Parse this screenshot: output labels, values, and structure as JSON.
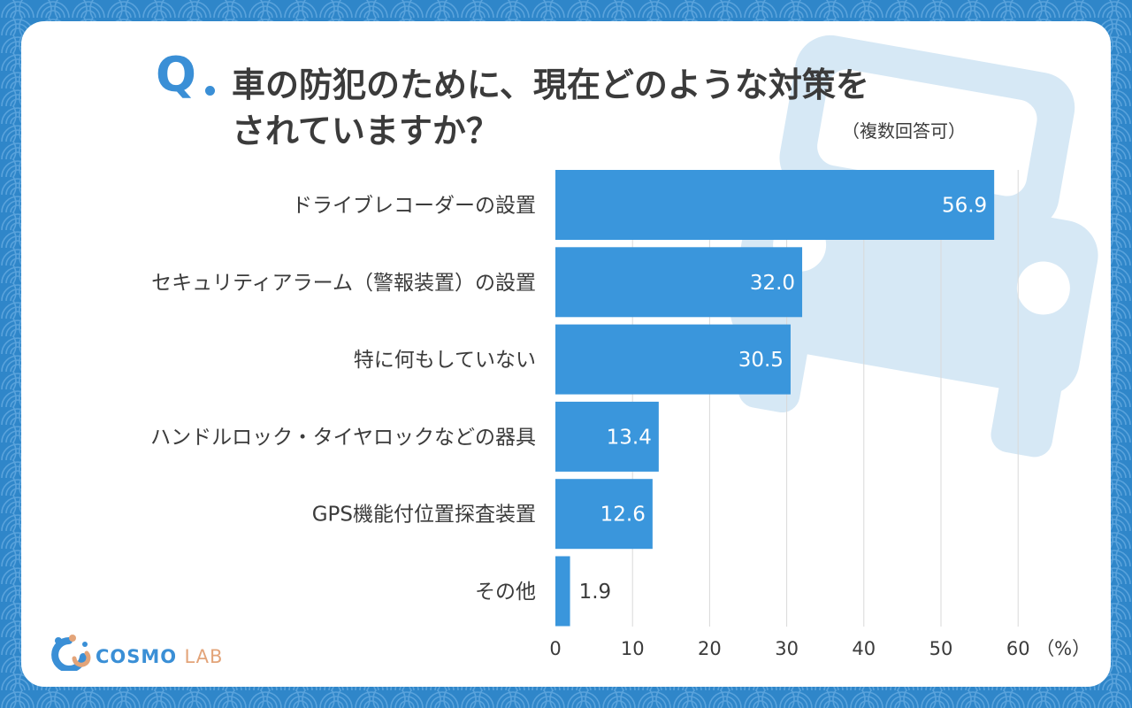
{
  "colors": {
    "background": "#2f86c9",
    "accent": "#3a8fd6",
    "bar": "#3a96dc",
    "car": "#d6e8f5",
    "logo_orange": "#e3a479"
  },
  "header": {
    "q_label": "Q",
    "title_line1": "車の防犯のために、現在どのような対策を",
    "title_line2": "されていますか？",
    "note": "（複数回答可）"
  },
  "logo": {
    "brand_primary": "COSMO",
    "brand_secondary": "LAB"
  },
  "chart_data": {
    "type": "bar",
    "orientation": "horizontal",
    "categories": [
      "ドライブレコーダーの設置",
      "セキュリティアラーム（警報装置）の設置",
      "特に何もしていない",
      "ハンドルロック・タイヤロックなどの器具",
      "GPS機能付位置探査装置",
      "その他"
    ],
    "values": [
      56.9,
      32.0,
      30.5,
      13.4,
      12.6,
      1.9
    ],
    "value_labels": [
      "56.9",
      "32.0",
      "30.5",
      "13.4",
      "12.6",
      "1.9"
    ],
    "x_ticks": [
      "0",
      "10",
      "20",
      "30",
      "40",
      "50",
      "60"
    ],
    "x_unit": "（%）",
    "xlim": [
      0,
      60
    ],
    "grid": true,
    "legend": "none"
  }
}
